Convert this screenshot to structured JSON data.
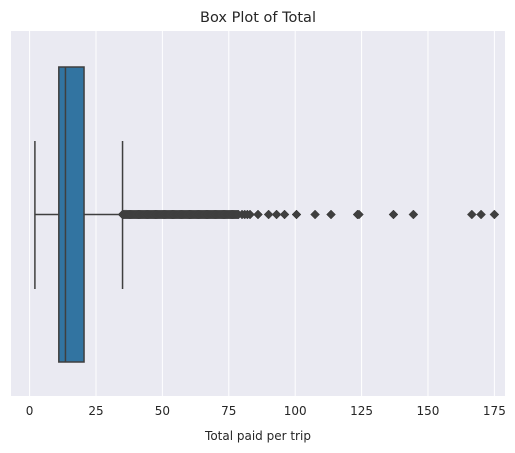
{
  "chart_data": {
    "type": "box",
    "title": "Box Plot of Total",
    "xlabel": "Total paid per trip",
    "ylabel": "",
    "xlim": [
      -7,
      179
    ],
    "xticks": [
      0,
      25,
      50,
      75,
      100,
      125,
      150,
      175
    ],
    "grid": true,
    "series": [
      {
        "whisker_low": 2,
        "q1": 11,
        "median": 13.5,
        "q3": 20.5,
        "whisker_high": 35,
        "outliers_dense_range": [
          35,
          79
        ],
        "outliers": [
          80,
          81,
          82,
          83,
          86,
          90,
          93,
          96,
          100.5,
          107.5,
          113.5,
          123.5,
          124,
          137,
          144.5,
          166.5,
          170,
          175
        ]
      }
    ],
    "colors": {
      "box_fill": "#3274a1",
      "outline": "#3f3f3f",
      "background": "#eaeaf2",
      "grid": "#ffffff"
    }
  }
}
